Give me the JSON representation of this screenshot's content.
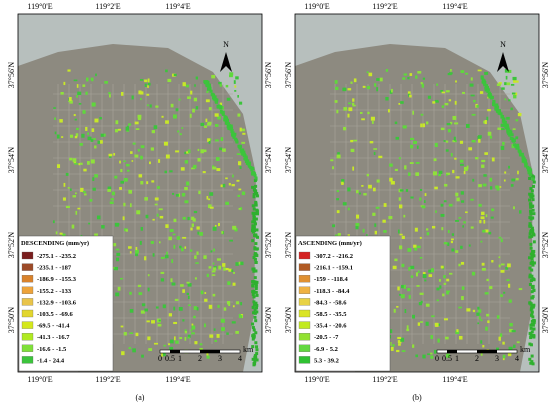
{
  "panels": [
    {
      "label": "(a)",
      "top_labels": [
        "119°0'E",
        "119°2'E",
        "119°4'E"
      ],
      "bottom_labels": [
        "119°0'E",
        "119°2'E",
        "119°4'E"
      ],
      "left_labels": [
        "37°56'N",
        "37°54'N",
        "37°52'N",
        "37°50'N"
      ],
      "right_labels": [
        "37°56'N",
        "37°54'N",
        "37°52'N",
        "37°50'N"
      ],
      "north": "N",
      "legend": {
        "title": "DESCENDING (mm/yr)",
        "items": [
          {
            "label": "-275.1 - -235.2",
            "color": "#7a1e1e"
          },
          {
            "label": "-235.1 - -187",
            "color": "#9c4a28"
          },
          {
            "label": "-186.9 - -155.3",
            "color": "#d9822b"
          },
          {
            "label": "-155.2 - -133",
            "color": "#eda33a"
          },
          {
            "label": "-132.9 - -103.6",
            "color": "#e9c44a"
          },
          {
            "label": "-103.5 - -69.6",
            "color": "#e2d62e"
          },
          {
            "label": "-69.5 - -41.4",
            "color": "#d4e81c"
          },
          {
            "label": "-41.3 - -16.7",
            "color": "#b0ea22"
          },
          {
            "label": "-16.6 - -1.5",
            "color": "#7fe03a"
          },
          {
            "label": "-1.4 - 24.4",
            "color": "#3cc43c"
          }
        ]
      },
      "scale": {
        "ticks": [
          "0",
          "0.5",
          "1",
          "2",
          "3",
          "4"
        ],
        "unit": "km"
      }
    },
    {
      "label": "(b)",
      "top_labels": [
        "119°0'E",
        "119°2'E",
        "119°4'E"
      ],
      "bottom_labels": [
        "119°0'E",
        "119°2'E",
        "119°4'E"
      ],
      "left_labels": [
        "37°56'N",
        "37°54'N",
        "37°52'N",
        "37°50'N"
      ],
      "right_labels": [
        "37°56'N",
        "37°54'N",
        "37°52'N",
        "37°50'N"
      ],
      "north": "N",
      "legend": {
        "title": "ASCENDING (mm/yr)",
        "items": [
          {
            "label": "-307.2 - -216.2",
            "color": "#d42222"
          },
          {
            "label": "-216.1 - -159.1",
            "color": "#b05a24"
          },
          {
            "label": "-159 - -118.4",
            "color": "#e09132"
          },
          {
            "label": "-118.3 - -84.4",
            "color": "#efb242"
          },
          {
            "label": "-84.3 - -58.6",
            "color": "#e8d244"
          },
          {
            "label": "-58.5 - -35.5",
            "color": "#dae424"
          },
          {
            "label": "-35.4 - -20.6",
            "color": "#c2ea20"
          },
          {
            "label": "-20.5 - -7",
            "color": "#92e232"
          },
          {
            "label": "-6.9 - 5.2",
            "color": "#62d840"
          },
          {
            "label": "5.3 - 39.2",
            "color": "#30c232"
          }
        ]
      },
      "scale": {
        "ticks": [
          "0",
          "0.5",
          "1",
          "2",
          "3",
          "4"
        ],
        "unit": "km"
      }
    }
  ]
}
